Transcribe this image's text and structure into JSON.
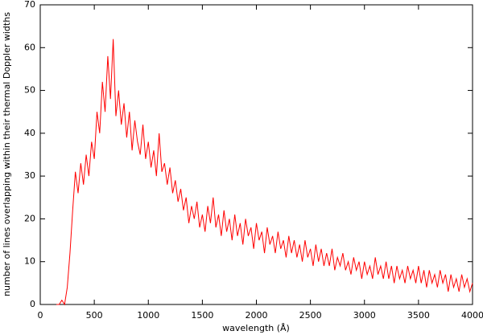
{
  "chart_data": {
    "type": "line",
    "xlabel": "wavelength (Å)",
    "ylabel": "number of lines overlapping within their thermal Doppler widths",
    "xlim": [
      0,
      4000
    ],
    "ylim": [
      0,
      70
    ],
    "xticks": [
      0,
      500,
      1000,
      1500,
      2000,
      2500,
      3000,
      3500,
      4000
    ],
    "yticks": [
      0,
      10,
      20,
      30,
      40,
      50,
      60,
      70
    ],
    "grid": false,
    "x": [
      150,
      175,
      200,
      225,
      250,
      275,
      300,
      325,
      350,
      375,
      400,
      425,
      450,
      475,
      500,
      525,
      550,
      575,
      600,
      625,
      650,
      675,
      700,
      725,
      750,
      775,
      800,
      825,
      850,
      875,
      900,
      925,
      950,
      975,
      1000,
      1025,
      1050,
      1075,
      1100,
      1125,
      1150,
      1175,
      1200,
      1225,
      1250,
      1275,
      1300,
      1325,
      1350,
      1375,
      1400,
      1425,
      1450,
      1475,
      1500,
      1525,
      1550,
      1575,
      1600,
      1625,
      1650,
      1675,
      1700,
      1725,
      1750,
      1775,
      1800,
      1825,
      1850,
      1875,
      1900,
      1925,
      1950,
      1975,
      2000,
      2025,
      2050,
      2075,
      2100,
      2125,
      2150,
      2175,
      2200,
      2225,
      2250,
      2275,
      2300,
      2325,
      2350,
      2375,
      2400,
      2425,
      2450,
      2475,
      2500,
      2525,
      2550,
      2575,
      2600,
      2625,
      2650,
      2675,
      2700,
      2725,
      2750,
      2775,
      2800,
      2825,
      2850,
      2875,
      2900,
      2925,
      2950,
      2975,
      3000,
      3025,
      3050,
      3075,
      3100,
      3125,
      3150,
      3175,
      3200,
      3225,
      3250,
      3275,
      3300,
      3325,
      3350,
      3375,
      3400,
      3425,
      3450,
      3475,
      3500,
      3525,
      3550,
      3575,
      3600,
      3625,
      3650,
      3675,
      3700,
      3725,
      3750,
      3775,
      3800,
      3825,
      3850,
      3875,
      3900,
      3925,
      3950,
      3975,
      4000
    ],
    "color": "#ff0000",
    "values": [
      0,
      0,
      1,
      0,
      4,
      12,
      22,
      31,
      26,
      33,
      28,
      35,
      30,
      38,
      34,
      45,
      40,
      52,
      45,
      58,
      48,
      62,
      44,
      50,
      42,
      47,
      39,
      45,
      36,
      43,
      38,
      35,
      42,
      34,
      38,
      32,
      36,
      30,
      40,
      31,
      33,
      28,
      32,
      26,
      29,
      24,
      27,
      22,
      25,
      19,
      23,
      20,
      24,
      18,
      21,
      17,
      23,
      19,
      25,
      18,
      21,
      16,
      22,
      17,
      20,
      15,
      21,
      16,
      19,
      14,
      20,
      16,
      18,
      13,
      19,
      15,
      17,
      12,
      18,
      14,
      16,
      12,
      17,
      13,
      15,
      11,
      16,
      12,
      15,
      11,
      14,
      10,
      15,
      11,
      13,
      9,
      14,
      10,
      13,
      9,
      12,
      9,
      13,
      8,
      11,
      9,
      12,
      8,
      10,
      7,
      11,
      8,
      10,
      6,
      10,
      7,
      9,
      6,
      11,
      7,
      9,
      6,
      10,
      6,
      9,
      5,
      9,
      6,
      8,
      5,
      9,
      6,
      8,
      5,
      9,
      5,
      8,
      4,
      8,
      5,
      7,
      4,
      8,
      5,
      7,
      3,
      7,
      4,
      6,
      3,
      7,
      4,
      6,
      3,
      5
    ]
  }
}
